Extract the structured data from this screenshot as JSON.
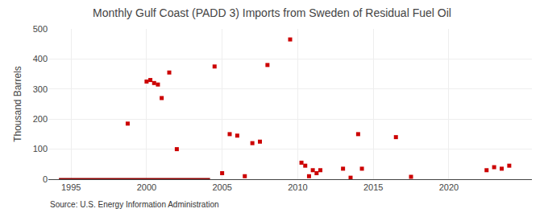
{
  "chart_data": {
    "type": "scatter",
    "title": "Monthly Gulf Coast (PADD 3) Imports from Sweden of Residual Fuel Oil",
    "ylabel": "Thousand Barrels",
    "source": "Source: U.S. Energy Information Administration",
    "series": [
      {
        "type": "line",
        "color": "#8b0000",
        "line_style": "solid",
        "x": [
          1994.2,
          2004.2
        ],
        "values": [
          0,
          0
        ]
      },
      {
        "type": "scatter",
        "color": "#cc0000",
        "marker": "square",
        "x": [
          1998.75,
          2000.0,
          2000.25,
          2000.5,
          2000.75,
          2001.0,
          2001.5,
          2002.0,
          2004.5,
          2005.0,
          2005.5,
          2006.0,
          2006.5,
          2007.0,
          2007.5,
          2008.0,
          2009.5,
          2010.25,
          2010.5,
          2010.75,
          2011.0,
          2011.25,
          2011.5,
          2013.0,
          2013.5,
          2014.0,
          2014.25,
          2016.5,
          2017.5,
          2022.5,
          2023.0,
          2023.5,
          2024.0
        ],
        "values": [
          185,
          325,
          330,
          320,
          315,
          270,
          355,
          100,
          375,
          20,
          150,
          145,
          10,
          120,
          125,
          380,
          465,
          55,
          45,
          10,
          30,
          20,
          30,
          35,
          5,
          150,
          35,
          140,
          8,
          30,
          40,
          35,
          45
        ]
      }
    ],
    "xlim": [
      1993.5,
      2025.5
    ],
    "xticks": [
      1995,
      2000,
      2005,
      2010,
      2015,
      2020
    ],
    "ylim": [
      0,
      500
    ],
    "yticks": [
      0,
      100,
      200,
      300,
      400,
      500
    ],
    "grid": true
  }
}
